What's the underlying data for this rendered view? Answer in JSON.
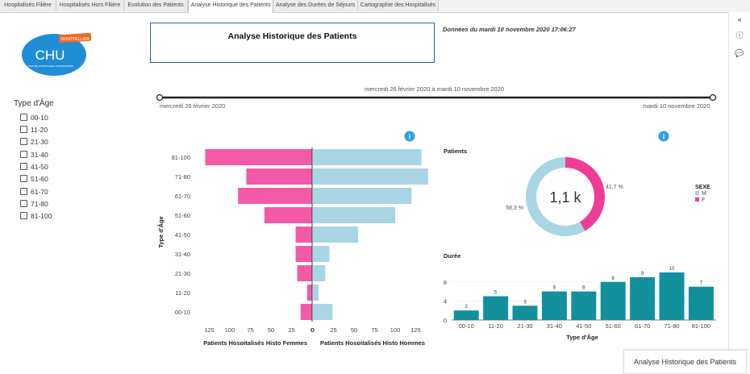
{
  "tabs": [
    "Hospitalisés Filière",
    "Hospitalisés Hors Filière",
    "Evolution des Patients",
    "Analyse Historique des Patients",
    "Analyse des Durées de Séjours",
    "Cartographie des Hospitalisés"
  ],
  "active_tab": 3,
  "logo": {
    "brand": "CHU",
    "city": "MONTPELLIER",
    "subtitle": "CENTRE HOSPITALIER UNIVERSITAIRE"
  },
  "title": "Analyse Historique des Patients",
  "data_timestamp": "Données du mardi 10 novembre 2020 17:06:27",
  "filter": {
    "title": "Type d'Âge",
    "items": [
      "00-10",
      "11-20",
      "21-30",
      "31-40",
      "41-50",
      "51-60",
      "61-70",
      "71-80",
      "81-100"
    ]
  },
  "date_slider": {
    "range_label": "mercredi 26 février 2020 à mardi 10 novembre 2020",
    "start_label": "mercredi 26 février 2020",
    "end_label": "mardi 10 novembre 2020"
  },
  "info_icon": "i",
  "right_toolbar": {
    "collapse_icon": "«",
    "info_icon": "ⓘ",
    "comment_icon": "💬"
  },
  "bottom_card": "Analyse Historique des Patients",
  "chart_data": [
    {
      "type": "bar",
      "orientation": "horizontal-butterfly",
      "categories": [
        "81-100",
        "71-80",
        "61-70",
        "51-60",
        "41-50",
        "31-40",
        "21-30",
        "11-20",
        "00-10"
      ],
      "series": [
        {
          "name": "Patients Hospitalisés Histo Femmes",
          "color": "#f25aa6",
          "values": [
            130,
            80,
            90,
            58,
            20,
            20,
            18,
            6,
            14
          ]
        },
        {
          "name": "Patients Hospitalisés Histo Hommes",
          "color": "#a9d5e5",
          "values": [
            132,
            140,
            120,
            100,
            55,
            20,
            15,
            7,
            24
          ]
        }
      ],
      "xlabel_left": "Patients Hospitalisés Histo Femmes",
      "xlabel_right": "Patients Hospitalisés Histo Hommes",
      "ylabel": "Type d'Âge",
      "ticks_left": [
        "125",
        "100",
        "75",
        "50",
        "25",
        "0"
      ],
      "ticks_right": [
        "0",
        "25",
        "50",
        "75",
        "100",
        "125"
      ]
    },
    {
      "type": "pie",
      "title": "Patients",
      "center_label": "1,1 k",
      "slices": [
        {
          "name": "M",
          "value": 58.3,
          "label": "58,3 %",
          "color": "#a9d5e5"
        },
        {
          "name": "F",
          "value": 41.7,
          "label": "41,7 %",
          "color": "#f03c95"
        }
      ],
      "legend_title": "SEXE",
      "legend": [
        "M",
        "F"
      ]
    },
    {
      "type": "bar",
      "title": "Durée",
      "categories": [
        "00-10",
        "11-20",
        "21-30",
        "31-40",
        "41-50",
        "51-60",
        "61-70",
        "71-80",
        "81-100"
      ],
      "values": [
        2,
        5,
        3,
        6,
        6,
        8,
        9,
        10,
        7
      ],
      "value_labels": [
        "2",
        "5",
        "3",
        "6",
        "6",
        "8",
        "9",
        "10",
        "7"
      ],
      "color": "#12919d",
      "xlabel": "Type d'Âge",
      "ylim": [
        0,
        11
      ],
      "yticks": [
        "0",
        "4",
        "8"
      ]
    }
  ]
}
